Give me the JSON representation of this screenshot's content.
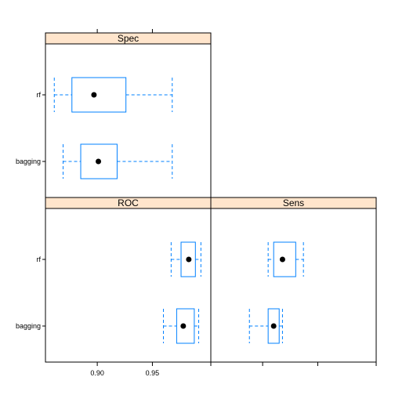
{
  "chart_data": {
    "type": "boxplot",
    "layout": "lattice-bwplot",
    "x_range": [
      0.853,
      1.003
    ],
    "x_ticks": [
      0.9,
      0.95
    ],
    "x_tick_labels": [
      "0.90",
      "0.95"
    ],
    "categories": [
      "rf",
      "bagging"
    ],
    "colors": {
      "box": "#0080ff",
      "strip_bg": "#ffe5cc",
      "median_dot": "#000000"
    },
    "panels": [
      {
        "name": "Spec",
        "series": [
          {
            "category": "rf",
            "whisker_low": 0.861,
            "q1": 0.877,
            "median": 0.897,
            "q3": 0.926,
            "whisker_high": 0.968
          },
          {
            "category": "bagging",
            "whisker_low": 0.869,
            "q1": 0.885,
            "median": 0.901,
            "q3": 0.918,
            "whisker_high": 0.968
          }
        ]
      },
      {
        "name": "ROC",
        "series": [
          {
            "category": "rf",
            "whisker_low": 0.967,
            "q1": 0.976,
            "median": 0.983,
            "q3": 0.989,
            "whisker_high": 0.994
          },
          {
            "category": "bagging",
            "whisker_low": 0.96,
            "q1": 0.972,
            "median": 0.978,
            "q3": 0.988,
            "whisker_high": 0.992
          }
        ]
      },
      {
        "name": "Sens",
        "series": [
          {
            "category": "rf",
            "whisker_low": 0.905,
            "q1": 0.91,
            "median": 0.918,
            "q3": 0.93,
            "whisker_high": 0.937
          },
          {
            "category": "bagging",
            "whisker_low": 0.888,
            "q1": 0.905,
            "median": 0.91,
            "q3": 0.915,
            "whisker_high": 0.918
          }
        ]
      }
    ]
  }
}
